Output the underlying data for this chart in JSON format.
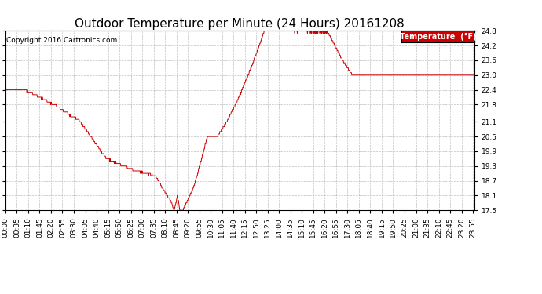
{
  "title": "Outdoor Temperature per Minute (24 Hours) 20161208",
  "copyright": "Copyright 2016 Cartronics.com",
  "legend_label": "Temperature  (°F)",
  "line_color": "#cc0000",
  "legend_bg": "#cc0000",
  "legend_text_color": "#ffffff",
  "bg_color": "#ffffff",
  "plot_bg_color": "#ffffff",
  "grid_color": "#b0b0b0",
  "grid_style": "--",
  "ylim": [
    17.5,
    24.8
  ],
  "yticks": [
    17.5,
    18.1,
    18.7,
    19.3,
    19.9,
    20.5,
    21.1,
    21.8,
    22.4,
    23.0,
    23.6,
    24.2,
    24.8
  ],
  "total_minutes": 1440,
  "xtick_interval": 35,
  "title_fontsize": 11,
  "axis_fontsize": 6.5,
  "copyright_fontsize": 6.5
}
